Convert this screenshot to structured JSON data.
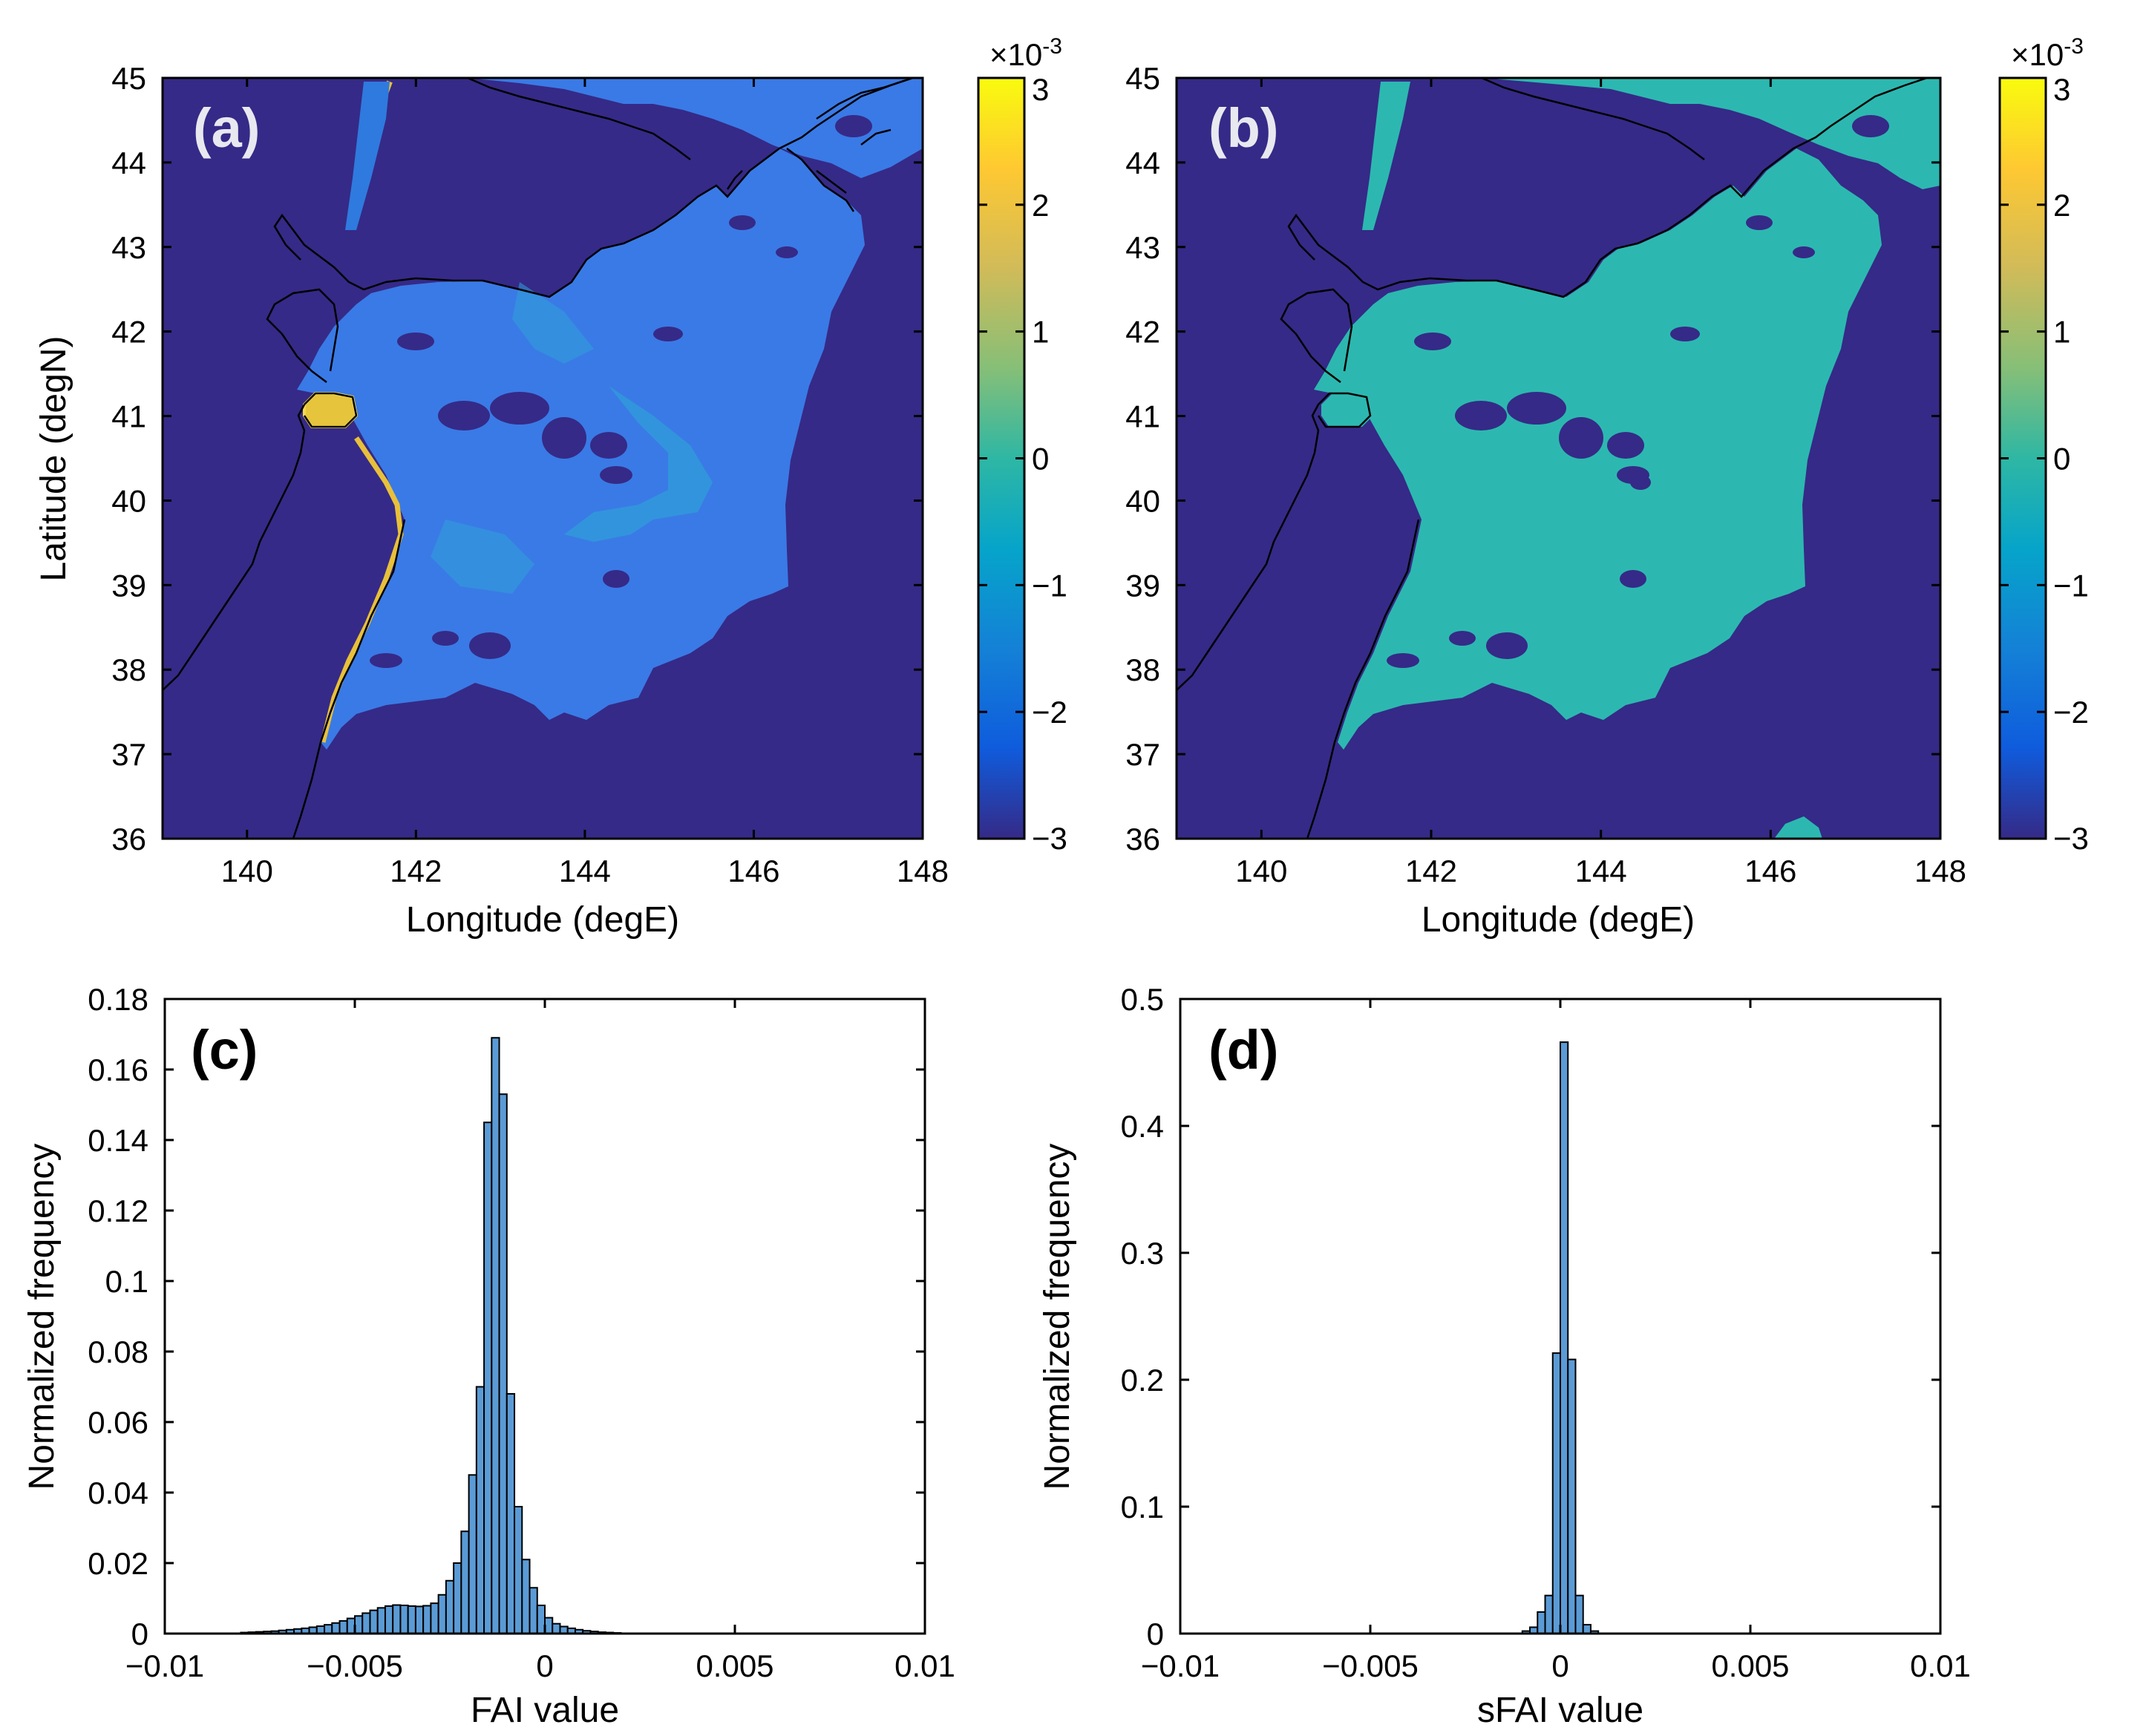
{
  "colors": {
    "bg_water": "#352a87",
    "lowfai": "#2f6fe0",
    "midfai": "#2fa0d8",
    "coastal_high": "#f0c431",
    "sfai_patch": "#2cb8b0",
    "bar_fill": "#5b9bd5",
    "bar_stroke": "#000000"
  },
  "chart_data": [
    {
      "type": "heatmap",
      "panel_label": "(a)",
      "xlabel": "Longitude (degE)",
      "ylabel": "Latitude (degN)",
      "xlim": [
        139,
        148
      ],
      "ylim": [
        36,
        45
      ],
      "x_ticks": [
        "140",
        "142",
        "144",
        "146",
        "148"
      ],
      "y_ticks": [
        "36",
        "37",
        "38",
        "39",
        "40",
        "41",
        "42",
        "43",
        "44",
        "45"
      ],
      "colorbar": {
        "scale_label": "×10",
        "scale_exp": "-3",
        "ticks": [
          "3",
          "2",
          "1",
          "0",
          "−1",
          "−2",
          "−3"
        ],
        "range": [
          -3,
          3
        ]
      }
    },
    {
      "type": "heatmap",
      "panel_label": "(b)",
      "xlabel": "Longitude (degE)",
      "ylabel": "",
      "xlim": [
        139,
        148
      ],
      "ylim": [
        36,
        45
      ],
      "x_ticks": [
        "140",
        "142",
        "144",
        "146",
        "148"
      ],
      "y_ticks": [
        "36",
        "37",
        "38",
        "39",
        "40",
        "41",
        "42",
        "43",
        "44",
        "45"
      ],
      "colorbar": {
        "scale_label": "×10",
        "scale_exp": "-3",
        "ticks": [
          "3",
          "2",
          "1",
          "0",
          "−1",
          "−2",
          "−3"
        ],
        "range": [
          -3,
          3
        ]
      }
    },
    {
      "type": "bar",
      "panel_label": "(c)",
      "xlabel": "FAI value",
      "ylabel": "Normalized frequency",
      "xlim": [
        -0.01,
        0.01
      ],
      "ylim": [
        0,
        0.18
      ],
      "x_ticks": [
        "−0.01",
        "−0.005",
        "0",
        "0.005",
        "0.01"
      ],
      "y_ticks": [
        "0",
        "0.02",
        "0.04",
        "0.06",
        "0.08",
        "0.1",
        "0.12",
        "0.14",
        "0.16",
        "0.18"
      ],
      "bin_width": 0.0002,
      "bin_centers": [
        -0.0079,
        -0.0077,
        -0.0075,
        -0.0073,
        -0.0071,
        -0.0069,
        -0.0067,
        -0.0065,
        -0.0063,
        -0.0061,
        -0.0059,
        -0.0057,
        -0.0055,
        -0.0053,
        -0.0051,
        -0.0049,
        -0.0047,
        -0.0045,
        -0.0043,
        -0.0041,
        -0.0039,
        -0.0037,
        -0.0035,
        -0.0033,
        -0.0031,
        -0.0029,
        -0.0027,
        -0.0025,
        -0.0023,
        -0.0021,
        -0.0019,
        -0.0017,
        -0.0015,
        -0.0013,
        -0.0011,
        -0.0009,
        -0.0007,
        -0.0005,
        -0.0003,
        -0.0001,
        0.0001,
        0.0003,
        0.0005,
        0.0007,
        0.0009,
        0.0011,
        0.0013,
        0.0015,
        0.0017,
        0.0019
      ],
      "values": [
        0.0003,
        0.0004,
        0.0005,
        0.0006,
        0.0007,
        0.0009,
        0.0011,
        0.0013,
        0.0015,
        0.0018,
        0.0021,
        0.0025,
        0.003,
        0.0036,
        0.0043,
        0.005,
        0.0058,
        0.0066,
        0.0073,
        0.0078,
        0.0081,
        0.008,
        0.0078,
        0.0077,
        0.0079,
        0.0086,
        0.011,
        0.015,
        0.02,
        0.029,
        0.045,
        0.07,
        0.145,
        0.169,
        0.153,
        0.068,
        0.036,
        0.021,
        0.013,
        0.008,
        0.0045,
        0.0028,
        0.002,
        0.0015,
        0.0011,
        0.0008,
        0.0006,
        0.0004,
        0.0003,
        0.0002
      ]
    },
    {
      "type": "bar",
      "panel_label": "(d)",
      "xlabel": "sFAI value",
      "ylabel": "Normalized frequency",
      "xlim": [
        -0.01,
        0.01
      ],
      "ylim": [
        0,
        0.5
      ],
      "x_ticks": [
        "−0.01",
        "−0.005",
        "0",
        "0.005",
        "0.01"
      ],
      "y_ticks": [
        "0",
        "0.1",
        "0.2",
        "0.3",
        "0.4",
        "0.5"
      ],
      "bin_width": 0.0002,
      "bin_centers": [
        -0.0009,
        -0.0007,
        -0.0005,
        -0.0003,
        -0.0001,
        0.0001,
        0.0003,
        0.0005,
        0.0007,
        0.0009
      ],
      "values": [
        0.002,
        0.005,
        0.017,
        0.03,
        0.221,
        0.466,
        0.216,
        0.03,
        0.007,
        0.002
      ]
    }
  ]
}
